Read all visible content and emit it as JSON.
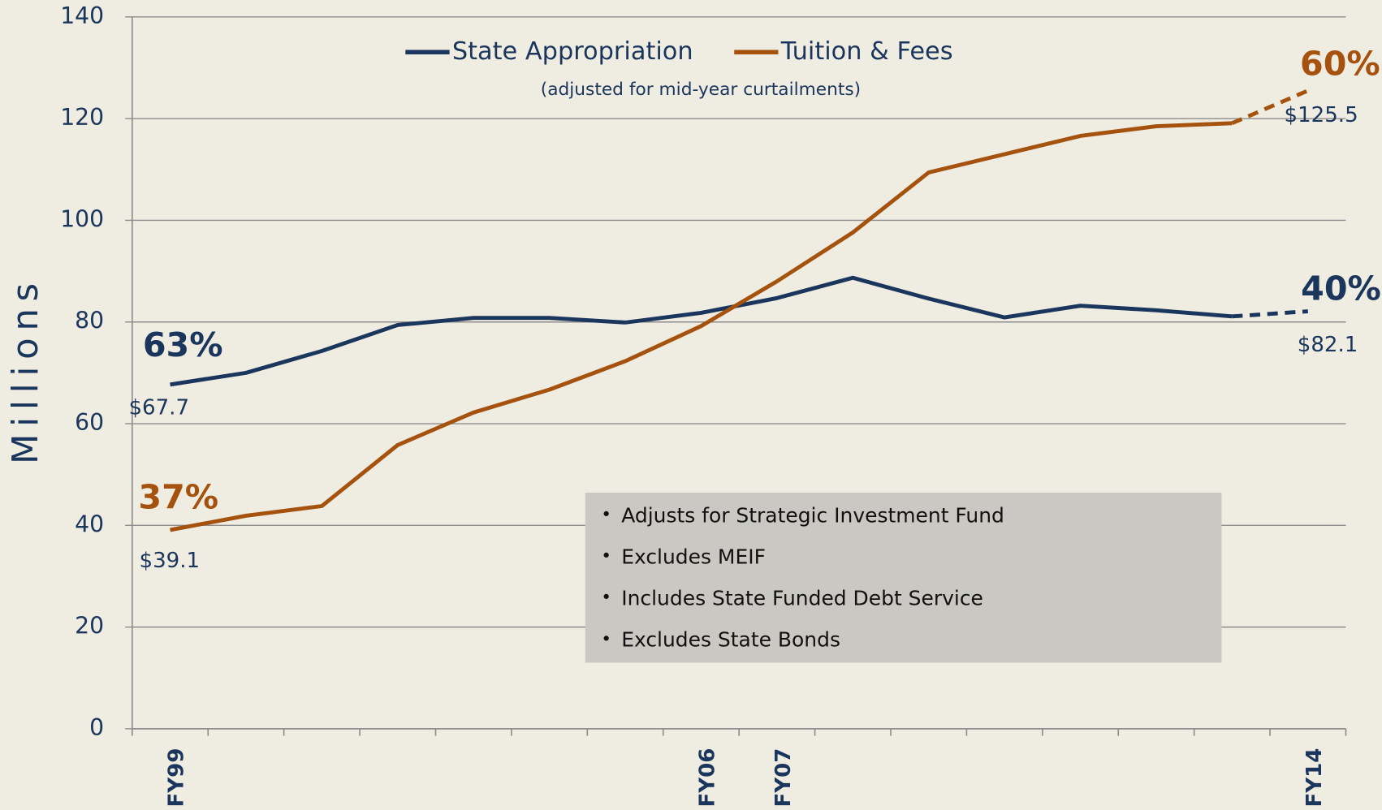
{
  "chart_data": {
    "type": "line",
    "y_axis_label": "Millions",
    "subtitle": "(adjusted for mid-year curtailments)",
    "categories": [
      "FY99",
      null,
      null,
      null,
      null,
      null,
      null,
      "FY06",
      "FY07",
      null,
      null,
      null,
      null,
      null,
      null,
      "FY14"
    ],
    "ylim": [
      0,
      140
    ],
    "yticks": [
      0,
      20,
      40,
      60,
      80,
      100,
      120,
      140
    ],
    "grid": true,
    "legend": "top",
    "series": [
      {
        "name": "State Appropriation",
        "color": "#1b365d",
        "dashed_last_segment": true,
        "values": [
          67.7,
          70.0,
          74.3,
          79.4,
          80.8,
          80.8,
          79.9,
          81.8,
          84.7,
          88.7,
          84.6,
          80.9,
          83.2,
          82.3,
          81.1,
          82.1
        ],
        "value_labels": [
          "$67.7",
          null,
          null,
          null,
          null,
          null,
          null,
          null,
          null,
          null,
          null,
          null,
          null,
          null,
          null,
          "$82.1"
        ],
        "share_labels": [
          "63%",
          "40%"
        ]
      },
      {
        "name": "Tuition & Fees",
        "color": "#a5520f",
        "dashed_last_segment": true,
        "values": [
          39.1,
          41.9,
          43.8,
          55.8,
          62.2,
          66.7,
          72.3,
          79.2,
          88.0,
          97.6,
          109.4,
          113.0,
          116.6,
          118.5,
          119.1,
          125.5
        ],
        "value_labels": [
          "$39.1",
          null,
          null,
          null,
          null,
          null,
          null,
          null,
          null,
          null,
          null,
          null,
          null,
          null,
          null,
          "$125.5"
        ],
        "share_labels": [
          "37%",
          "60%"
        ]
      }
    ],
    "notes": [
      "Adjusts for Strategic Investment Fund",
      "Excludes MEIF",
      "Includes State Funded Debt Service",
      "Excludes State Bonds"
    ]
  }
}
